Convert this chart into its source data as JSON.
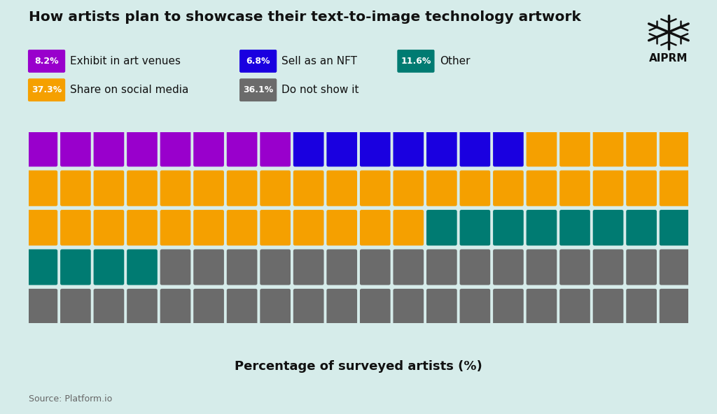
{
  "title": "How artists plan to showcase their text-to-image technology artwork",
  "xlabel": "Percentage of surveyed artists (%)",
  "source": "Source: Platform.io",
  "background_color": "#d6ecea",
  "categories": [
    {
      "label": "Exhibit in art venues",
      "pct": "8.2%",
      "count": 8,
      "color": "#9900cc"
    },
    {
      "label": "Sell as an NFT",
      "pct": "6.8%",
      "count": 7,
      "color": "#1a00e0"
    },
    {
      "label": "Share on social media",
      "pct": "37.3%",
      "count": 37,
      "color": "#f5a000"
    },
    {
      "label": "Other",
      "pct": "11.6%",
      "count": 12,
      "color": "#007b72"
    },
    {
      "label": "Do not show it",
      "pct": "36.1%",
      "count": 36,
      "color": "#6b6b6b"
    }
  ],
  "n_cols": 20,
  "n_rows": 5,
  "legend_row1": [
    0,
    1,
    3
  ],
  "legend_row2": [
    2,
    4
  ]
}
